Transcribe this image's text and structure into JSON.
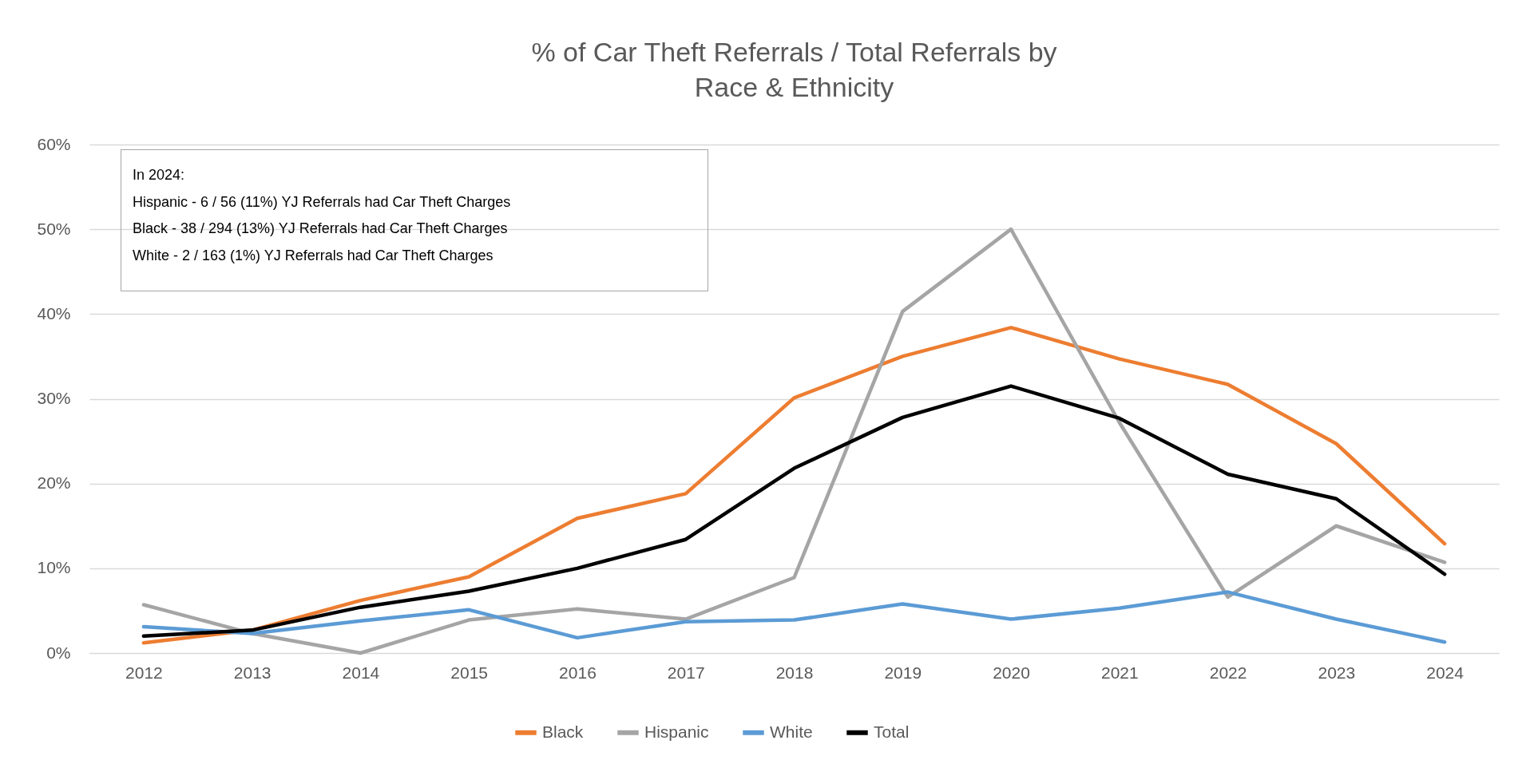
{
  "chart_data": {
    "type": "line",
    "title": "% of Car Theft Referrals / Total Referrals by\nRace & Ethnicity",
    "categories": [
      "2012",
      "2013",
      "2014",
      "2015",
      "2016",
      "2017",
      "2018",
      "2019",
      "2020",
      "2021",
      "2022",
      "2023",
      "2024"
    ],
    "series": [
      {
        "name": "Black",
        "color": "#ed7d31",
        "values": [
          1.2,
          2.7,
          6.2,
          9.0,
          15.9,
          18.8,
          30.1,
          35.0,
          38.4,
          34.7,
          31.7,
          24.7,
          12.9
        ]
      },
      {
        "name": "Hispanic",
        "color": "#a5a5a5",
        "values": [
          5.7,
          2.3,
          0,
          3.9,
          5.2,
          4.0,
          8.9,
          40.3,
          50.0,
          27.2,
          6.6,
          15.0,
          10.7
        ]
      },
      {
        "name": "White",
        "color": "#5b9bd5",
        "values": [
          3.1,
          2.3,
          3.8,
          5.1,
          1.8,
          3.7,
          3.9,
          5.8,
          4.0,
          5.3,
          7.2,
          4.0,
          1.3
        ]
      },
      {
        "name": "Total",
        "color": "#000000",
        "values": [
          2.0,
          2.7,
          5.4,
          7.3,
          10.0,
          13.4,
          21.8,
          27.8,
          31.5,
          27.7,
          21.1,
          18.2,
          9.3
        ]
      }
    ],
    "ylim": [
      0,
      60
    ],
    "yticks": [
      {
        "value": 0,
        "label": "0%"
      },
      {
        "value": 10,
        "label": "10%"
      },
      {
        "value": 20,
        "label": "20%"
      },
      {
        "value": 30,
        "label": "30%"
      },
      {
        "value": 40,
        "label": "40%"
      },
      {
        "value": 50,
        "label": "50%"
      },
      {
        "value": 60,
        "label": "60%"
      }
    ],
    "grid": "y",
    "legend": "bottom",
    "marker": "none",
    "line_style": "solid",
    "annotations": [
      "In 2024:",
      "Hispanic - 6 / 56 (11%) YJ Referrals had Car Theft Charges",
      "Black - 38 / 294 (13%) YJ Referrals had Car Theft Charges",
      "White - 2 / 163 (1%) YJ Referrals had Car Theft Charges"
    ]
  }
}
